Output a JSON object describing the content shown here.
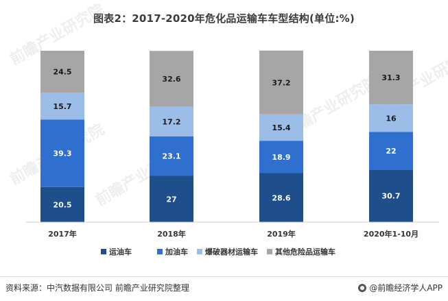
{
  "title": "图表2：2017-2020年危化品运输车车型结构(单位:%)",
  "watermark": "前瞻产业研究院",
  "chart_data": {
    "type": "bar",
    "stacked": true,
    "categories": [
      "2017年",
      "2018年",
      "2019年",
      "2020年1-10月"
    ],
    "series": [
      {
        "name": "运油车",
        "color": "#1f4e8c",
        "values": [
          20.5,
          27,
          28.6,
          30.7
        ]
      },
      {
        "name": "加油车",
        "color": "#2f6fcf",
        "values": [
          39.3,
          23.1,
          18.9,
          22
        ]
      },
      {
        "name": "爆破器材运输车",
        "color": "#9dbde9",
        "values": [
          15.7,
          17.2,
          15.4,
          16
        ]
      },
      {
        "name": "其他危险品运输车",
        "color": "#a6a6a6",
        "values": [
          24.5,
          32.6,
          37.2,
          31.3
        ]
      }
    ],
    "ylim": [
      0,
      100
    ],
    "grid": false,
    "legend_position": "bottom"
  },
  "footer": {
    "source": "资料来源：中汽数据有限公司 前瞻产业研究院整理",
    "brand": "@前瞻经济学人APP"
  }
}
